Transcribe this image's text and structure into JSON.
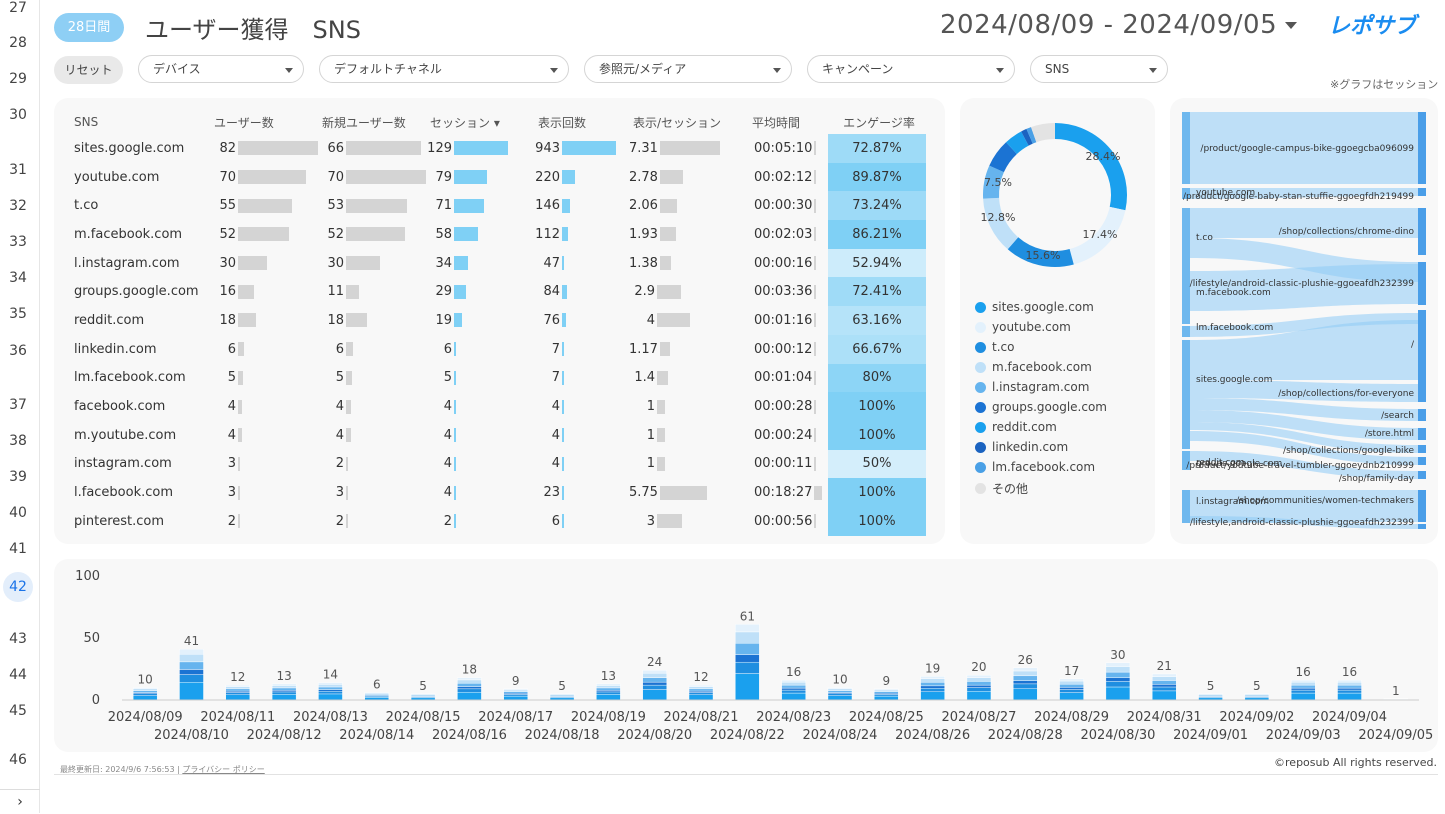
{
  "gutter": {
    "lines": [
      "27",
      "28",
      "29",
      "30",
      "31",
      "32",
      "33",
      "34",
      "35",
      "36",
      "37",
      "38",
      "39",
      "40",
      "41",
      "42",
      "43",
      "44",
      "45",
      "46"
    ],
    "active": "42",
    "arrow": "›"
  },
  "header": {
    "badge": "28日間",
    "title": "ユーザー獲得　SNS",
    "date_range": "2024/08/09 - 2024/09/05",
    "logo_text": "レポサブ"
  },
  "filters": {
    "reset": "リセット",
    "device": "デバイス",
    "default_channel": "デフォルトチャネル",
    "source_medium": "参照元/メディア",
    "campaign": "キャンペーン",
    "sns": "SNS"
  },
  "note": "※グラフはセッション",
  "table": {
    "headers": [
      "SNS",
      "ユーザー数",
      "新規ユーザー数",
      "セッション ▾",
      "表示回数",
      "表示/セッション",
      "平均時間",
      "エンゲージ率"
    ],
    "rows": [
      {
        "sns": "sites.google.com",
        "users": "82",
        "new_users": "66",
        "sessions": "129",
        "views": "943",
        "vps": "7.31",
        "avg_time": "00:05:10",
        "engage": "72.87%"
      },
      {
        "sns": "youtube.com",
        "users": "70",
        "new_users": "70",
        "sessions": "79",
        "views": "220",
        "vps": "2.78",
        "avg_time": "00:02:12",
        "engage": "89.87%"
      },
      {
        "sns": "t.co",
        "users": "55",
        "new_users": "53",
        "sessions": "71",
        "views": "146",
        "vps": "2.06",
        "avg_time": "00:00:30",
        "engage": "73.24%"
      },
      {
        "sns": "m.facebook.com",
        "users": "52",
        "new_users": "52",
        "sessions": "58",
        "views": "112",
        "vps": "1.93",
        "avg_time": "00:02:03",
        "engage": "86.21%"
      },
      {
        "sns": "l.instagram.com",
        "users": "30",
        "new_users": "30",
        "sessions": "34",
        "views": "47",
        "vps": "1.38",
        "avg_time": "00:00:16",
        "engage": "52.94%"
      },
      {
        "sns": "groups.google.com",
        "users": "16",
        "new_users": "11",
        "sessions": "29",
        "views": "84",
        "vps": "2.9",
        "avg_time": "00:03:36",
        "engage": "72.41%"
      },
      {
        "sns": "reddit.com",
        "users": "18",
        "new_users": "18",
        "sessions": "19",
        "views": "76",
        "vps": "4",
        "avg_time": "00:01:16",
        "engage": "63.16%"
      },
      {
        "sns": "linkedin.com",
        "users": "6",
        "new_users": "6",
        "sessions": "6",
        "views": "7",
        "vps": "1.17",
        "avg_time": "00:00:12",
        "engage": "66.67%"
      },
      {
        "sns": "lm.facebook.com",
        "users": "5",
        "new_users": "5",
        "sessions": "5",
        "views": "7",
        "vps": "1.4",
        "avg_time": "00:01:04",
        "engage": "80%"
      },
      {
        "sns": "facebook.com",
        "users": "4",
        "new_users": "4",
        "sessions": "4",
        "views": "4",
        "vps": "1",
        "avg_time": "00:00:28",
        "engage": "100%"
      },
      {
        "sns": "m.youtube.com",
        "users": "4",
        "new_users": "4",
        "sessions": "4",
        "views": "4",
        "vps": "1",
        "avg_time": "00:00:24",
        "engage": "100%"
      },
      {
        "sns": "instagram.com",
        "users": "3",
        "new_users": "2",
        "sessions": "4",
        "views": "4",
        "vps": "1",
        "avg_time": "00:00:11",
        "engage": "50%"
      },
      {
        "sns": "l.facebook.com",
        "users": "3",
        "new_users": "3",
        "sessions": "4",
        "views": "23",
        "vps": "5.75",
        "avg_time": "00:18:27",
        "engage": "100%"
      },
      {
        "sns": "pinterest.com",
        "users": "2",
        "new_users": "2",
        "sessions": "2",
        "views": "6",
        "vps": "3",
        "avg_time": "00:00:56",
        "engage": "100%"
      }
    ]
  },
  "donut": {
    "labels": [
      "28.4%",
      "17.4%",
      "15.6%",
      "12.8%",
      "7.5%"
    ],
    "legend": [
      {
        "name": "sites.google.com",
        "color": "#1aa0ee"
      },
      {
        "name": "youtube.com",
        "color": "#e3f1fc"
      },
      {
        "name": "t.co",
        "color": "#1f8ee0"
      },
      {
        "name": "m.facebook.com",
        "color": "#bfe0f8"
      },
      {
        "name": "l.instagram.com",
        "color": "#66b4ee"
      },
      {
        "name": "groups.google.com",
        "color": "#1b73d3"
      },
      {
        "name": "reddit.com",
        "color": "#1aa0ee"
      },
      {
        "name": "linkedin.com",
        "color": "#1b63c0"
      },
      {
        "name": "lm.facebook.com",
        "color": "#4aa0e6"
      },
      {
        "name": "その他",
        "color": "#e3e3e3"
      }
    ]
  },
  "sankey": {
    "left_labels": [
      "youtube.com",
      "t.co",
      "m.facebook.com",
      "lm.facebook.com",
      "sites.google.com",
      "reddit.com",
      "groups.google.com",
      "l.instagram.com"
    ],
    "right_labels": [
      "/product/google-campus-bike-ggoegcba096099",
      "/product/google-baby-stan-stuffie-ggoegfdh219499",
      "/shop/collections/chrome-dino",
      "/lifestyle/android-classic-plushie-ggoeafdh232399",
      "/",
      "/shop/collections/for-everyone",
      "/search",
      "/store.html",
      "/shop/collections/google-bike",
      "/product/youtube-travel-tumbler-ggoeydnb210999",
      "/shop/family-day",
      "/shop/communities/women-techmakers",
      "/lifestyle,android-classic-plushie-ggoeafdh232399"
    ]
  },
  "footer": {
    "updated": "最終更新日: 2024/9/6 7:56:53",
    "privacy": "プライバシー ポリシー",
    "copyright": "©reposub All rights reserved."
  },
  "chart_data": {
    "type": "bar",
    "stacked": true,
    "categories": [
      "2024/08/09",
      "2024/08/10",
      "2024/08/11",
      "2024/08/12",
      "2024/08/13",
      "2024/08/14",
      "2024/08/15",
      "2024/08/16",
      "2024/08/17",
      "2024/08/18",
      "2024/08/19",
      "2024/08/20",
      "2024/08/21",
      "2024/08/22",
      "2024/08/23",
      "2024/08/24",
      "2024/08/25",
      "2024/08/26",
      "2024/08/27",
      "2024/08/28",
      "2024/08/29",
      "2024/08/30",
      "2024/08/31",
      "2024/09/01",
      "2024/09/02",
      "2024/09/03",
      "2024/09/04",
      "2024/09/05"
    ],
    "totals": [
      10,
      41,
      12,
      13,
      14,
      6,
      5,
      18,
      9,
      5,
      13,
      24,
      12,
      61,
      16,
      10,
      9,
      19,
      20,
      26,
      17,
      30,
      21,
      5,
      5,
      16,
      16,
      1
    ],
    "yticks": [
      0,
      50,
      100
    ],
    "ylim": [
      0,
      100
    ],
    "series_colors": [
      "#1aa0ee",
      "#1f8ee0",
      "#1b73d3",
      "#66b4ee",
      "#bfe0f8",
      "#e3f1fc"
    ]
  }
}
